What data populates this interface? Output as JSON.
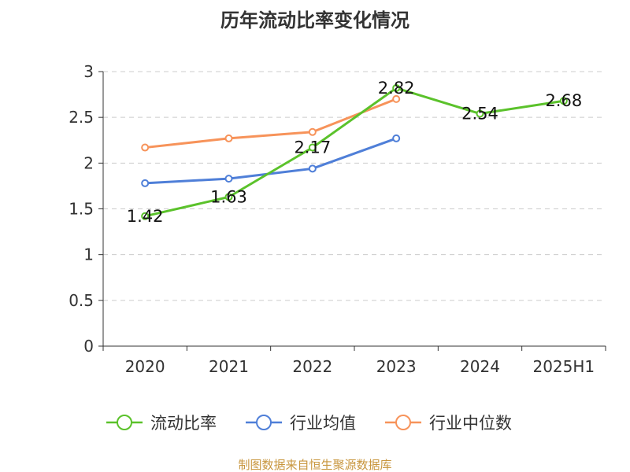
{
  "chart_data": {
    "type": "line",
    "title": "历年流动比率变化情况",
    "categories": [
      "2020",
      "2021",
      "2022",
      "2023",
      "2024",
      "2025H1"
    ],
    "yticks": [
      "0",
      "0.5",
      "1",
      "1.5",
      "2",
      "2.5",
      "3"
    ],
    "ylim": [
      0,
      3
    ],
    "grid": true,
    "legend_position": "bottom",
    "series": [
      {
        "name": "流动比率",
        "color": "#5bc22b",
        "values": [
          1.42,
          1.63,
          2.17,
          2.82,
          2.54,
          2.68
        ],
        "labels": [
          "1.42",
          "1.63",
          "2.17",
          "2.82",
          "2.54",
          "2.68"
        ]
      },
      {
        "name": "行业均值",
        "color": "#4f7fd8",
        "values": [
          1.78,
          1.83,
          1.94,
          2.27,
          null,
          null
        ]
      },
      {
        "name": "行业中位数",
        "color": "#f7935a",
        "values": [
          2.17,
          2.27,
          2.34,
          2.7,
          null,
          null
        ]
      }
    ]
  },
  "source": {
    "text": "制图数据来自恒生聚源数据库",
    "color": "#c8963e"
  }
}
